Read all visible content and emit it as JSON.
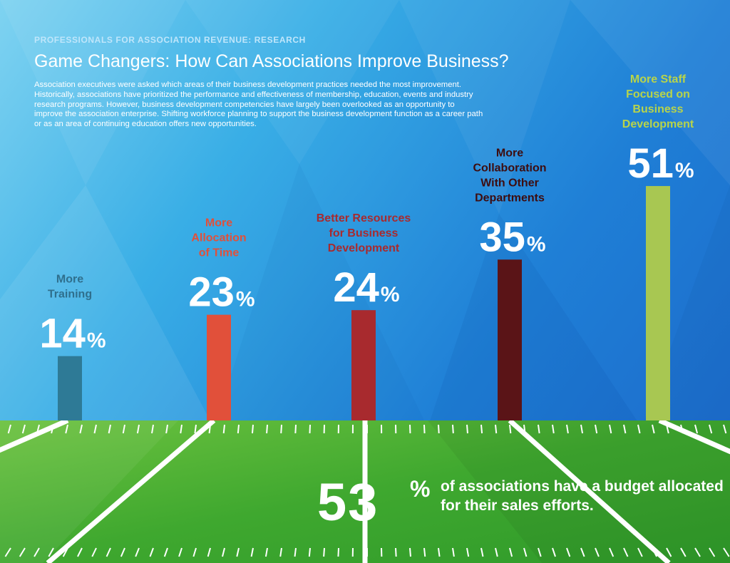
{
  "header": {
    "eyebrow": "PROFESSIONALS FOR ASSOCIATION REVENUE: RESEARCH",
    "title": "Game Changers: How Can Associations Improve Business?",
    "intro": "Association executives were asked which areas of their business development practices needed the most improvement. Historically, associations have prioritized the performance and effectiveness of membership, education, events and industry research programs. However, business development competencies have largely been overlooked as an opportunity to improve the association enterprise. Shifting workforce planning to support the business development function as a career path or as an area of continuing education offers new opportunities."
  },
  "chart_data": {
    "type": "bar",
    "title": "",
    "unit": "%",
    "ylim": [
      0,
      60
    ],
    "grid": false,
    "legend": "none",
    "categories": [
      [
        "More",
        "Training"
      ],
      [
        "More",
        "Allocation",
        "of Time"
      ],
      [
        "Better Resources",
        "for Business",
        "Development"
      ],
      [
        "More",
        "Collaboration",
        "With Other",
        "Departments"
      ],
      [
        "More Staff",
        "Focused on",
        "Business",
        "Development"
      ]
    ],
    "values": [
      14,
      23,
      24,
      35,
      51
    ],
    "colors": [
      "#2e7a96",
      "#e1503a",
      "#a82a2e",
      "#5a1417",
      "#a8c752"
    ],
    "label_colors": [
      "#2f6f8d",
      "#e1503a",
      "#a82a2e",
      "#3d0d10",
      "#b8d44a"
    ]
  },
  "callout": {
    "number": "53",
    "percent_sign": "%",
    "text": "of associations have a budget allocated for their sales efforts."
  }
}
